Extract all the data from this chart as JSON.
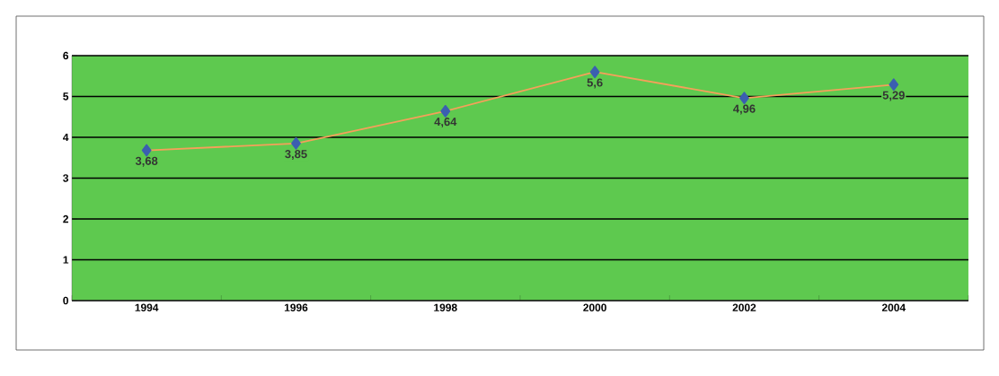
{
  "chart_data": {
    "type": "line",
    "categories": [
      "1994",
      "1996",
      "1998",
      "2000",
      "2002",
      "2004"
    ],
    "series": [
      {
        "color": "#f5a05a",
        "values": [
          3.68,
          3.85,
          4.64,
          5.6,
          4.96,
          5.29
        ],
        "value_labels": [
          "3,68",
          "3,85",
          "4,64",
          "5,6",
          "4,96",
          "5,29"
        ]
      }
    ],
    "ylim": [
      0,
      6
    ],
    "yticks": [
      0,
      1,
      2,
      3,
      4,
      5,
      6
    ],
    "grid": "y",
    "marker": "diamond",
    "line_style": "solid"
  }
}
